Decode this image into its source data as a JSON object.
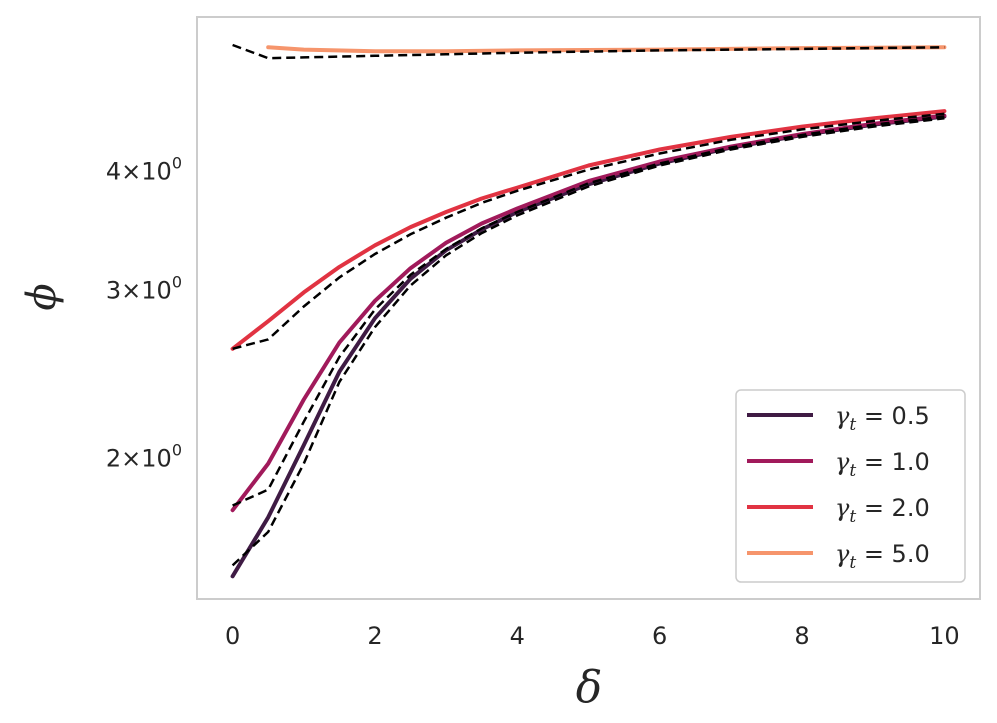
{
  "chart_data": {
    "type": "line",
    "xlabel": "δ",
    "ylabel": "ϕ",
    "xlim": [
      -0.5,
      10.5
    ],
    "ylim": [
      1.42,
      5.8
    ],
    "yscale": "log",
    "grid": false,
    "legend_position": "bottom-right",
    "x_ticks": [
      {
        "value": 0,
        "label": "0"
      },
      {
        "value": 2,
        "label": "2"
      },
      {
        "value": 4,
        "label": "4"
      },
      {
        "value": 6,
        "label": "6"
      },
      {
        "value": 8,
        "label": "8"
      },
      {
        "value": 10,
        "label": "10"
      }
    ],
    "y_ticks": [
      {
        "value": 2,
        "base": "2",
        "exp": "0"
      },
      {
        "value": 3,
        "base": "3",
        "exp": "0"
      },
      {
        "value": 4,
        "base": "4",
        "exp": "0"
      }
    ],
    "series": [
      {
        "name": "γt = 0.5",
        "legend_label": {
          "sym": "γ",
          "sub": "t",
          "rest": " = 0.5"
        },
        "color": "#3f1b44",
        "x": [
          0,
          0.5,
          1,
          1.5,
          2,
          2.5,
          3,
          3.5,
          4,
          5,
          6,
          7,
          8,
          9,
          10
        ],
        "y": [
          1.5,
          1.73,
          2.06,
          2.46,
          2.8,
          3.08,
          3.3,
          3.47,
          3.62,
          3.87,
          4.07,
          4.23,
          4.36,
          4.47,
          4.56
        ],
        "fit_y": [
          1.54,
          1.67,
          1.97,
          2.4,
          2.74,
          3.03,
          3.26,
          3.44,
          3.59,
          3.85,
          4.05,
          4.21,
          4.34,
          4.45,
          4.54
        ]
      },
      {
        "name": "γt = 1.0",
        "legend_label": {
          "sym": "γ",
          "sub": "t",
          "rest": " = 1.0"
        },
        "color": "#a11a5b",
        "x": [
          0,
          0.5,
          1,
          1.5,
          2,
          2.5,
          3,
          3.5,
          4,
          5,
          6,
          7,
          8,
          9,
          10
        ],
        "y": [
          1.76,
          1.97,
          2.3,
          2.64,
          2.92,
          3.16,
          3.36,
          3.52,
          3.65,
          3.9,
          4.09,
          4.24,
          4.37,
          4.48,
          4.57
        ],
        "fit_y": [
          1.78,
          1.85,
          2.18,
          2.55,
          2.86,
          3.11,
          3.31,
          3.48,
          3.62,
          3.88,
          4.07,
          4.23,
          4.36,
          4.47,
          4.56
        ]
      },
      {
        "name": "γt = 2.0",
        "legend_label": {
          "sym": "γ",
          "sub": "t",
          "rest": " = 2.0"
        },
        "color": "#e13342",
        "x": [
          0,
          0.5,
          1,
          1.5,
          2,
          2.5,
          3,
          3.5,
          4,
          5,
          6,
          7,
          8,
          9,
          10
        ],
        "y": [
          2.6,
          2.78,
          2.98,
          3.17,
          3.34,
          3.49,
          3.62,
          3.74,
          3.84,
          4.05,
          4.21,
          4.34,
          4.45,
          4.54,
          4.62
        ],
        "fit_y": [
          2.6,
          2.66,
          2.88,
          3.09,
          3.27,
          3.43,
          3.57,
          3.7,
          3.81,
          4.01,
          4.17,
          4.31,
          4.42,
          4.51,
          4.59
        ]
      },
      {
        "name": "γt = 5.0",
        "legend_label": {
          "sym": "γ",
          "sub": "t",
          "rest": " = 5.0"
        },
        "color": "#f6956c",
        "x": [
          0.5,
          1,
          2,
          3,
          4,
          6,
          8,
          10
        ],
        "y": [
          5.39,
          5.36,
          5.34,
          5.34,
          5.35,
          5.36,
          5.38,
          5.39
        ],
        "fit_x": [
          0,
          0.5,
          1,
          2,
          3,
          4,
          6,
          8,
          10
        ],
        "fit_y": [
          5.42,
          5.25,
          5.26,
          5.28,
          5.3,
          5.32,
          5.35,
          5.37,
          5.39
        ]
      }
    ]
  }
}
